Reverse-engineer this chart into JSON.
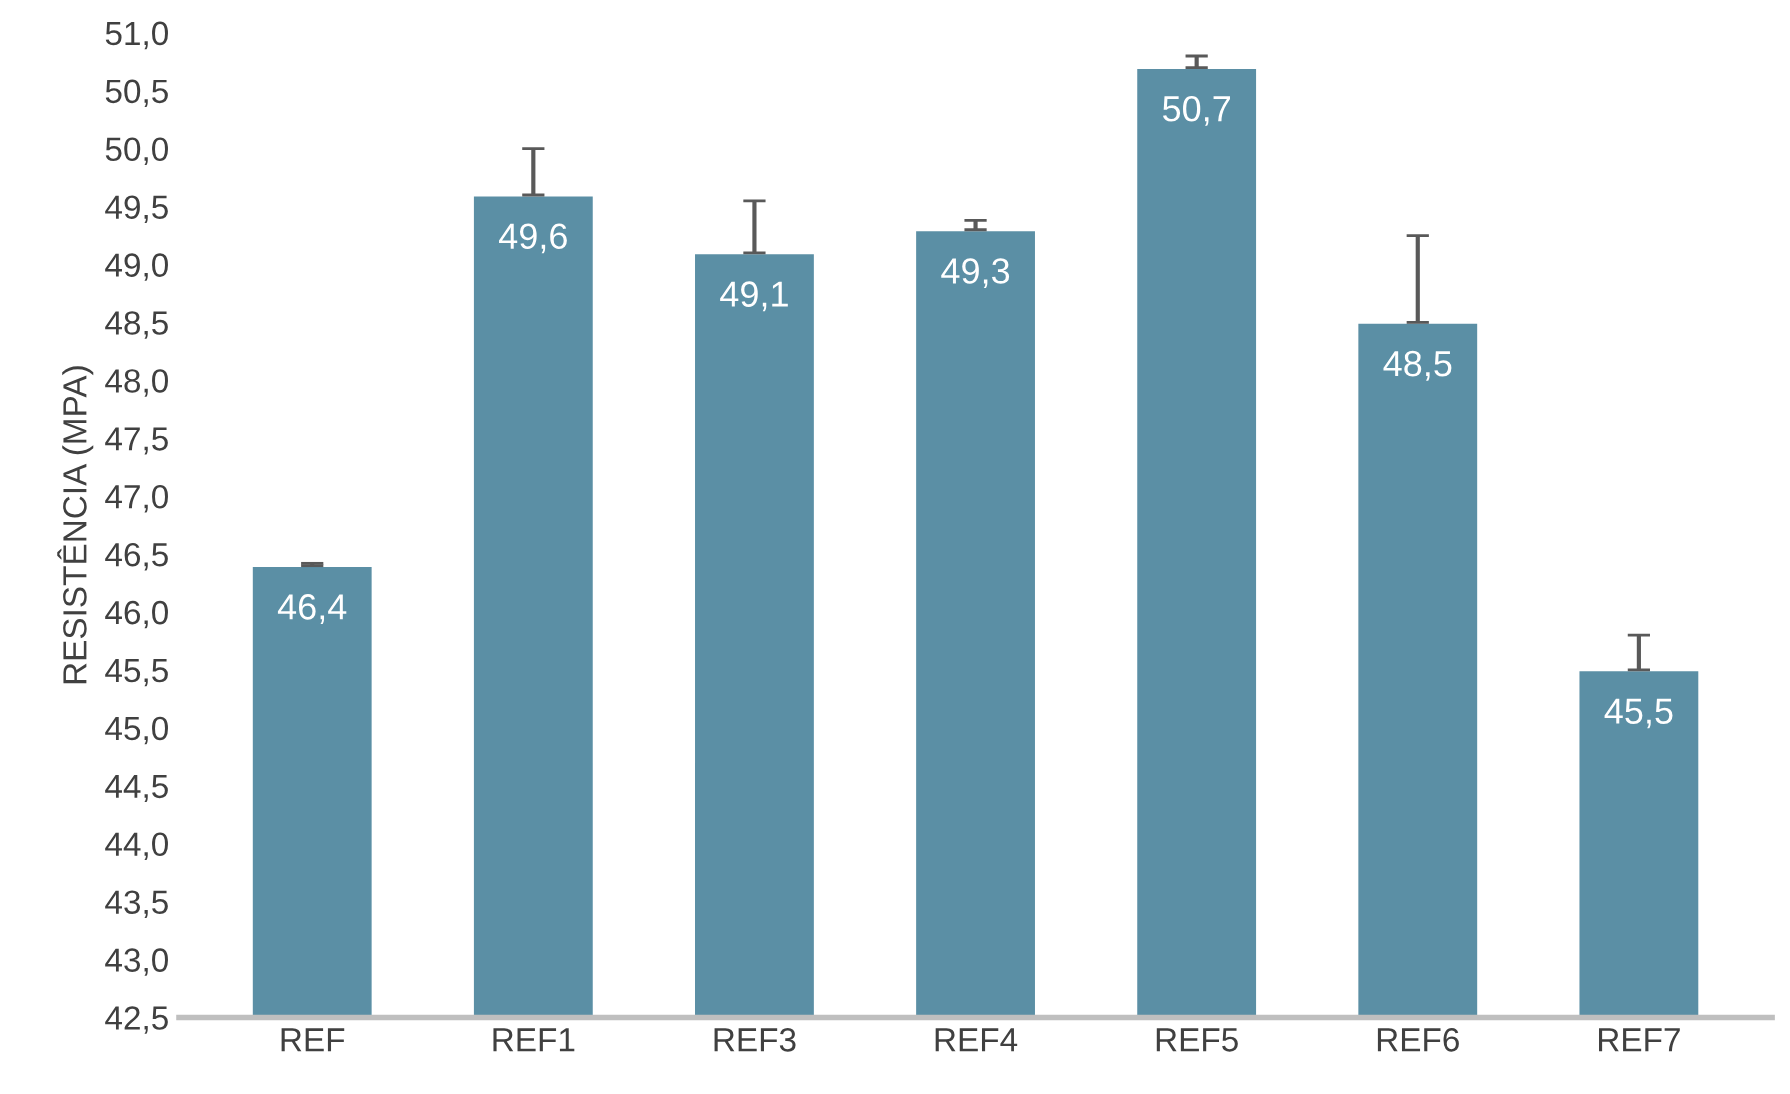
{
  "chart_data": {
    "type": "bar",
    "ylabel": "RESISTÊNCIA (MPA)",
    "categories": [
      "REF",
      "REF1",
      "REF3",
      "REF4",
      "REF5",
      "REF6",
      "REF7"
    ],
    "values": [
      46.4,
      49.6,
      49.1,
      49.3,
      50.7,
      48.5,
      45.5
    ],
    "errors": [
      [
        46.4,
        46.42
      ],
      [
        49.6,
        50.0
      ],
      [
        49.1,
        49.55
      ],
      [
        49.3,
        49.38
      ],
      [
        50.7,
        50.8
      ],
      [
        48.5,
        49.25
      ],
      [
        45.5,
        45.8
      ]
    ],
    "value_labels": [
      "46,4",
      "49,6",
      "49,1",
      "49,3",
      "50,7",
      "48,5",
      "45,5"
    ],
    "color": "#5b8fa5",
    "grid": false,
    "legend": false,
    "ylim": [
      42.5,
      51.0
    ],
    "yticks": [
      {
        "value": 42.5,
        "label": "42,5"
      },
      {
        "value": 43.0,
        "label": "43,0"
      },
      {
        "value": 43.5,
        "label": "43,5"
      },
      {
        "value": 44.0,
        "label": "44,0"
      },
      {
        "value": 44.5,
        "label": "44,5"
      },
      {
        "value": 45.0,
        "label": "45,0"
      },
      {
        "value": 45.5,
        "label": "45,5"
      },
      {
        "value": 46.0,
        "label": "46,0"
      },
      {
        "value": 46.5,
        "label": "46,5"
      },
      {
        "value": 47.0,
        "label": "47,0"
      },
      {
        "value": 47.5,
        "label": "47,5"
      },
      {
        "value": 48.0,
        "label": "48,0"
      },
      {
        "value": 48.5,
        "label": "48,5"
      },
      {
        "value": 49.0,
        "label": "49,0"
      },
      {
        "value": 49.5,
        "label": "49,5"
      },
      {
        "value": 50.0,
        "label": "50,0"
      },
      {
        "value": 50.5,
        "label": "50,5"
      },
      {
        "value": 51.0,
        "label": "51,0"
      }
    ]
  }
}
